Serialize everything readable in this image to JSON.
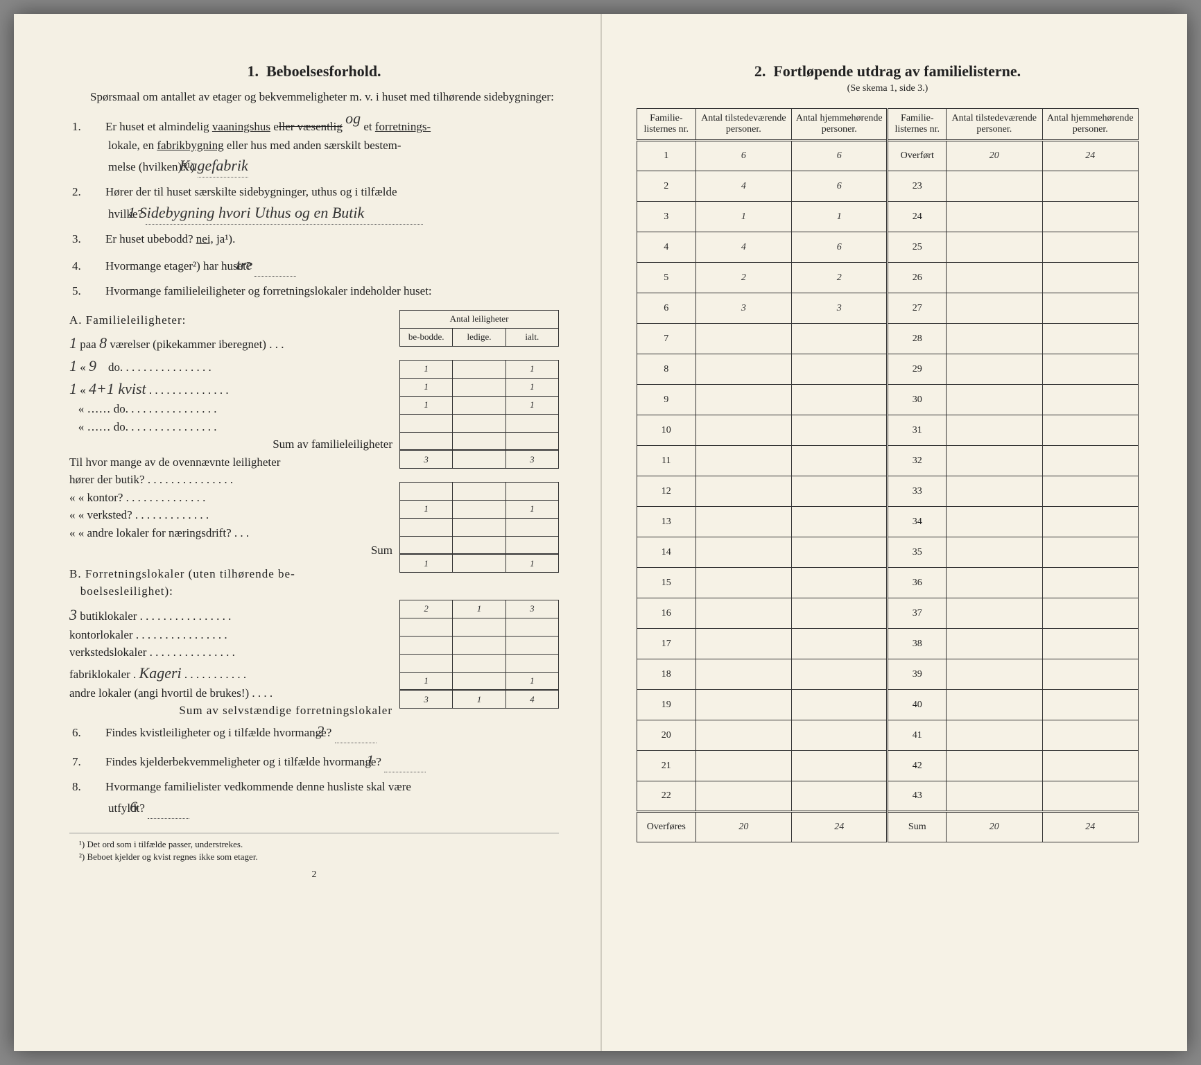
{
  "left": {
    "title_num": "1.",
    "title": "Beboelsesforhold.",
    "intro": "Spørsmaal om antallet av etager og bekvemmeligheter m. v. i huset med tilhørende sidebygninger:",
    "q1_pre": "Er huset et almindelig ",
    "q1_und1": "vaaningshus",
    "q1_mid": " e",
    "q1_strike": "ller væsentlig",
    "q1_hw_og": "og",
    "q1_mid2": " et ",
    "q1_und2": "forretnings-",
    "q1_line2a": "lokale, en ",
    "q1_und3": "fabrikbygning",
    "q1_line2b": " eller hus med anden særskilt bestem-",
    "q1_line3": "melse (hvilken)?¹) ",
    "q1_hw": "Kagefabrik",
    "q2a": "Hører der til huset særskilte sidebygninger, uthus og i tilfælde",
    "q2b": "hvilke? ",
    "q2_hw": "1 Sidebygning hvori Uthus og en Butik",
    "q3": "Er huset ubebodd? ",
    "q3_nei": "nei,",
    "q3_ja": " ja¹).",
    "q4a": "Hvormange etager²) har huset? ",
    "q4_hw": "tre",
    "q5": "Hvormange familieleiligheter og forretningslokaler indeholder huset:",
    "tbl_header": "Antal leiligheter",
    "tbl_h1": "be-bodde.",
    "tbl_h2": "ledige.",
    "tbl_h3": "ialt.",
    "secA": "A. Familieleiligheter:",
    "rA1_margin": "1",
    "rA1": "paa ",
    "rA1_n": "8",
    "rA1_rest": " værelser (pikekammer iberegnet) . . .",
    "rA1_v1": "1",
    "rA1_v3": "1",
    "rA2_margin": "1",
    "rA2_n": "9",
    "rA2_rest": " do. . . . . . . . . . . . . . . .",
    "rA2_v1": "1",
    "rA2_v3": "1",
    "rA3_margin": "1",
    "rA3_n": "4+1 kvist",
    "rA3_rest": " . . . . . . . . . . . . . .",
    "rA3_v1": "1",
    "rA3_v3": "1",
    "rA_blank": " do. . . . . . . . . . . . . . . .",
    "sumA": "Sum av familieleiligheter",
    "sumA_v1": "3",
    "sumA_v3": "3",
    "til_intro": "Til hvor mange av de ovennævnte leiligheter",
    "til1": "hører der butik? . . . . . . . . . . . . . . .",
    "til2": "«    « kontor? . . . . . . . . . . . . . .",
    "til2_v1": "1",
    "til2_v3": "1",
    "til3": "«    « verksted? . . . . . . . . . . . . .",
    "til4": "«    « andre lokaler for næringsdrift? . . .",
    "til_sum": "Sum",
    "tilsum_v1": "1",
    "tilsum_v3": "1",
    "secB": "B. Forretningslokaler (uten tilhørende be-",
    "secB2": "boelsesleilighet):",
    "rB1_margin": "3",
    "rB1": "butiklokaler . . . . . . . . . . . . . . . .",
    "rB1_v1": "2",
    "rB1_v2": "1",
    "rB1_v3": "3",
    "rB2": "kontorlokaler . . . . . . . . . . . . . . . .",
    "rB3": "verkstedslokaler . . . . . . . . . . . . . . .",
    "rB4": "fabriklokaler . ",
    "rB4_hw": "Kageri",
    "rB4_rest": " . . . . . . . . . . .",
    "rB5": "andre lokaler (angi hvortil de brukes!) . . . .",
    "rB5_v1": "1",
    "rB5_v3": "1",
    "sumB": "Sum av selvstændige forretningslokaler",
    "sumB_v1": "3",
    "sumB_v2": "1",
    "sumB_v3": "4",
    "q6": "Findes kvistleiligheter og i tilfælde hvormange? ",
    "q6_hw": "2",
    "q7": "Findes kjelderbekvemmeligheter og i tilfælde hvormange? ",
    "q7_hw": "1",
    "q8a": "Hvormange familielister vedkommende denne husliste skal være",
    "q8b": "utfyldt? ",
    "q8_hw": "6",
    "fn1": "¹) Det ord som i tilfælde passer, understrekes.",
    "fn2": "²) Beboet kjelder og kvist regnes ikke som etager.",
    "pagenum": "2"
  },
  "right": {
    "title_num": "2.",
    "title": "Fortløpende utdrag av familielisterne.",
    "sub": "(Se skema 1, side 3.)",
    "h1": "Familie-listernes nr.",
    "h2": "Antal tilstedeværende personer.",
    "h3": "Antal hjemmehørende personer.",
    "h4": "Familie-listernes nr.",
    "h5": "Antal tilstedeværende personer.",
    "h6": "Antal hjemmehørende personer.",
    "overfort": "Overført",
    "ov_v1": "20",
    "ov_v2": "24",
    "rows": [
      {
        "n": "1",
        "a": "6",
        "b": "6"
      },
      {
        "n": "2",
        "a": "4",
        "b": "6"
      },
      {
        "n": "3",
        "a": "1",
        "b": "1"
      },
      {
        "n": "4",
        "a": "4",
        "b": "6"
      },
      {
        "n": "5",
        "a": "2",
        "b": "2"
      },
      {
        "n": "6",
        "a": "3",
        "b": "3"
      },
      {
        "n": "7",
        "a": "",
        "b": ""
      },
      {
        "n": "8",
        "a": "",
        "b": ""
      },
      {
        "n": "9",
        "a": "",
        "b": ""
      },
      {
        "n": "10",
        "a": "",
        "b": ""
      },
      {
        "n": "11",
        "a": "",
        "b": ""
      },
      {
        "n": "12",
        "a": "",
        "b": ""
      },
      {
        "n": "13",
        "a": "",
        "b": ""
      },
      {
        "n": "14",
        "a": "",
        "b": ""
      },
      {
        "n": "15",
        "a": "",
        "b": ""
      },
      {
        "n": "16",
        "a": "",
        "b": ""
      },
      {
        "n": "17",
        "a": "",
        "b": ""
      },
      {
        "n": "18",
        "a": "",
        "b": ""
      },
      {
        "n": "19",
        "a": "",
        "b": ""
      },
      {
        "n": "20",
        "a": "",
        "b": ""
      },
      {
        "n": "21",
        "a": "",
        "b": ""
      },
      {
        "n": "22",
        "a": "",
        "b": ""
      }
    ],
    "right_nums": [
      "23",
      "24",
      "25",
      "26",
      "27",
      "28",
      "29",
      "30",
      "31",
      "32",
      "33",
      "34",
      "35",
      "36",
      "37",
      "38",
      "39",
      "40",
      "41",
      "42",
      "43"
    ],
    "overfores": "Overføres",
    "of_v1": "20",
    "of_v2": "24",
    "sum": "Sum",
    "sum_v1": "20",
    "sum_v2": "24"
  },
  "style": {
    "paper": "#f4f0e4",
    "ink": "#222222",
    "hw_color": "#333333"
  }
}
